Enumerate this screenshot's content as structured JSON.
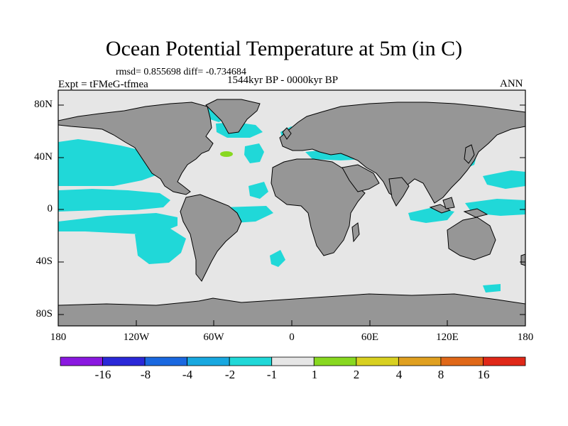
{
  "title": "Ocean Potential Temperature at 5m (in C)",
  "stats_text": "rmsd= 0.855698 diff= -0.734684",
  "experiment": "Expt = tFMeG-tfmea",
  "period": "1544kyr BP - 0000kyr BP",
  "season": "ANN",
  "y_ticks": [
    "80N",
    "40N",
    "0",
    "40S",
    "80S"
  ],
  "x_ticks": [
    "180",
    "120W",
    "60W",
    "0",
    "60E",
    "120E",
    "180"
  ],
  "colorbar": {
    "levels": [
      "-16",
      "-8",
      "-4",
      "-2",
      "-1",
      "1",
      "2",
      "4",
      "8",
      "16"
    ],
    "colors": [
      "#8a18e0",
      "#2a28d8",
      "#1a68e0",
      "#18a8e0",
      "#20d8d8",
      "#e6e6e6",
      "#88d820",
      "#d8d020",
      "#e0a020",
      "#e06818",
      "#e02818"
    ]
  },
  "colors": {
    "land": "#969696",
    "ocean_near_zero": "#e6e6e6",
    "cool_anomaly": "#20d8d8",
    "coastline": "#000000"
  }
}
